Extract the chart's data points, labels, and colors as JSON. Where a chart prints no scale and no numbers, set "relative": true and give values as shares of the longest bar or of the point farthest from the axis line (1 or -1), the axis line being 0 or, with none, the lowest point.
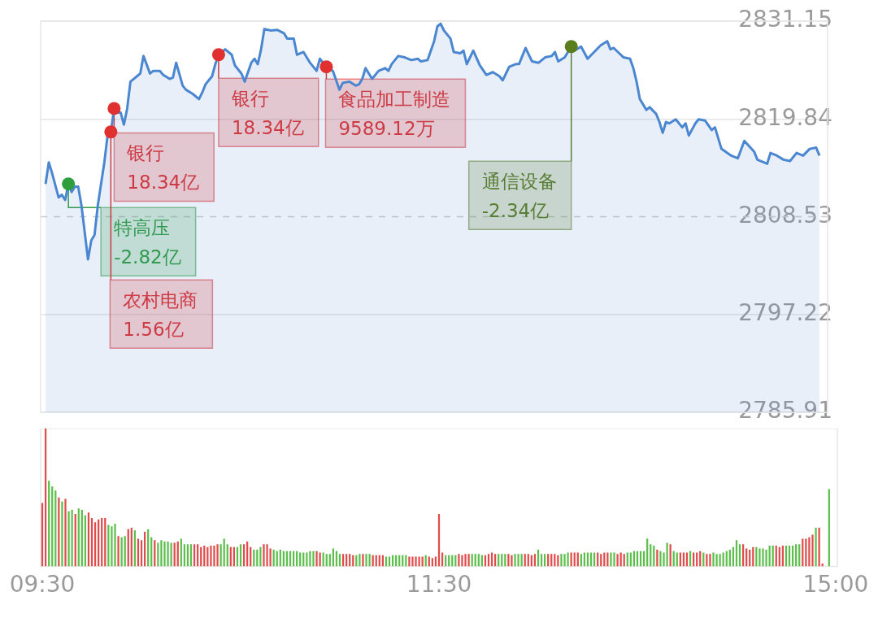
{
  "chart_data": [
    {
      "type": "area",
      "ylim": [
        2785.91,
        2831.15
      ],
      "yticks": [
        2785.91,
        2797.22,
        2808.53,
        2819.84,
        2831.15
      ],
      "grid": "y",
      "tick_labels": "y",
      "ref_lines": [
        {
          "axis": "y",
          "value": 2808.53,
          "line_style": "dashed",
          "color": "#cccccc"
        }
      ],
      "categories": [
        null,
        null,
        null,
        null,
        null,
        null,
        null,
        null,
        null,
        null,
        null,
        null,
        null,
        null,
        null,
        null,
        null,
        null,
        null,
        null,
        null,
        null,
        null,
        null,
        null,
        null,
        null,
        null,
        null,
        null,
        null,
        null,
        null,
        null,
        null,
        null,
        null,
        null,
        null,
        null,
        null,
        null,
        null,
        null,
        null,
        null,
        null,
        null,
        null,
        null,
        null,
        null,
        null,
        null,
        null,
        null,
        null,
        null,
        null,
        null,
        null,
        null,
        null,
        null,
        null,
        null,
        null,
        null,
        null,
        null,
        null,
        null,
        null,
        null,
        null,
        null,
        null,
        null,
        null,
        null,
        null,
        null,
        null,
        null,
        null,
        null,
        null,
        null,
        null,
        null,
        null,
        null,
        null,
        null,
        null,
        null,
        null,
        null,
        null,
        null,
        null,
        null,
        null,
        null,
        null,
        null,
        null,
        null,
        null,
        null,
        null,
        null,
        null,
        null,
        null,
        null,
        null,
        null,
        null,
        null,
        null,
        null,
        null,
        null,
        null,
        null,
        null,
        null,
        null,
        null,
        null,
        null,
        null,
        null,
        null,
        null,
        null,
        null,
        null,
        null,
        null,
        null,
        null,
        null,
        null,
        null,
        null,
        null,
        null,
        null,
        null,
        null,
        null,
        null,
        null,
        null,
        null,
        null,
        null,
        null,
        null,
        null,
        null,
        null,
        null,
        null,
        null,
        null,
        null,
        null,
        null,
        null,
        null,
        null,
        null,
        null,
        null,
        null,
        null,
        null,
        null,
        null,
        null,
        null,
        null,
        null,
        null,
        null,
        null,
        null,
        null,
        null,
        null,
        null,
        null,
        null,
        null,
        null,
        null,
        null,
        null,
        null,
        null,
        null,
        null,
        null,
        null,
        null,
        null,
        null,
        null,
        null,
        null,
        null,
        null,
        null,
        null,
        null,
        null,
        null,
        null,
        null,
        null,
        null,
        null,
        null,
        null,
        null,
        null,
        null,
        null,
        null,
        null,
        null,
        null,
        null,
        null,
        null,
        null,
        null,
        null
      ],
      "series": [
        {
          "type": "scatter",
          "marker": "circle",
          "values": [
            null,
            null,
            null,
            null,
            null,
            null,
            null,
            null,
            2812.33,
            null,
            null,
            null,
            null,
            null,
            null,
            null,
            null,
            null,
            null,
            null,
            null,
            2818.34,
            2821.05,
            null,
            null,
            null,
            null,
            null,
            null,
            null,
            null,
            null,
            null,
            null,
            null,
            null,
            null,
            null,
            null,
            null,
            null,
            null,
            null,
            null,
            null,
            null,
            null,
            null,
            null,
            null,
            null,
            null,
            null,
            null,
            2827.27,
            null,
            null,
            null,
            null,
            null,
            null,
            null,
            null,
            null,
            null,
            null,
            null,
            null,
            null,
            null,
            null,
            null,
            null,
            null,
            null,
            null,
            null,
            null,
            null,
            null,
            null,
            null,
            null,
            null,
            null,
            null,
            null,
            2825.87,
            null,
            null,
            null,
            null,
            null,
            null,
            null,
            null,
            null,
            null,
            null,
            null,
            null,
            null,
            null,
            null,
            null,
            null,
            null,
            null,
            null,
            null,
            null,
            null,
            null,
            null,
            null,
            null,
            null,
            null,
            null,
            null,
            null,
            null,
            null,
            null,
            null,
            null,
            null,
            null,
            null,
            null,
            null,
            null,
            null,
            null,
            null,
            null,
            null,
            null,
            null,
            null,
            null,
            null,
            null,
            null,
            null,
            null,
            null,
            null,
            null,
            null,
            null,
            null,
            null,
            null,
            null,
            null,
            null,
            null,
            null,
            null,
            null,
            null,
            2828.21,
            null,
            null,
            null,
            null,
            null,
            null,
            null,
            null,
            null,
            null,
            null,
            null,
            null,
            null,
            null,
            null,
            null,
            null,
            null,
            null,
            null,
            null,
            null,
            null,
            null,
            null,
            null,
            null,
            null,
            null,
            null,
            null,
            null,
            null,
            null,
            null,
            null,
            null,
            null,
            null,
            null,
            null,
            null,
            null,
            null,
            null,
            null,
            null,
            null,
            null,
            null,
            null,
            null,
            null,
            null,
            null,
            null,
            null,
            null,
            null,
            null,
            null,
            null,
            null,
            null,
            null,
            null,
            null,
            null,
            null,
            null,
            null,
            null,
            null,
            null,
            null,
            null,
            null
          ],
          "colors": [
            null,
            null,
            null,
            null,
            null,
            null,
            null,
            null,
            "#2e9e3e",
            null,
            null,
            null,
            null,
            null,
            null,
            null,
            null,
            null,
            null,
            null,
            null,
            "#e03030",
            "#e03030",
            null,
            null,
            null,
            null,
            null,
            null,
            null,
            null,
            null,
            null,
            null,
            null,
            null,
            null,
            null,
            null,
            null,
            null,
            null,
            null,
            null,
            null,
            null,
            null,
            null,
            null,
            null,
            null,
            null,
            null,
            null,
            "#e03030",
            null,
            null,
            null,
            null,
            null,
            null,
            null,
            null,
            null,
            null,
            null,
            null,
            null,
            null,
            null,
            null,
            null,
            null,
            null,
            null,
            null,
            null,
            null,
            null,
            null,
            null,
            null,
            null,
            null,
            null,
            null,
            null,
            "#e03030",
            null,
            null,
            null,
            null,
            null,
            null,
            null,
            null,
            null,
            null,
            null,
            null,
            null,
            null,
            null,
            null,
            null,
            null,
            null,
            null,
            null,
            null,
            null,
            null,
            null,
            null,
            null,
            null,
            null,
            null,
            null,
            null,
            null,
            null,
            null,
            null,
            null,
            null,
            null,
            null,
            null,
            null,
            null,
            null,
            null,
            null,
            null,
            null,
            null,
            null,
            null,
            null,
            null,
            null,
            null,
            null,
            null,
            null,
            null,
            null,
            null,
            null,
            null,
            null,
            null,
            null,
            null,
            null,
            null,
            null,
            null,
            null,
            null,
            null,
            "#5a7d1e",
            null,
            null,
            null,
            null,
            null,
            null,
            null,
            null,
            null,
            null,
            null,
            null,
            null,
            null,
            null,
            null,
            null,
            null,
            null,
            null,
            null,
            null,
            null,
            null,
            null,
            null,
            null,
            null,
            null,
            null,
            null,
            null,
            null,
            null,
            null,
            null,
            null,
            null,
            null,
            null,
            null,
            null,
            null,
            null,
            null,
            null,
            null,
            null,
            null,
            null,
            null,
            null,
            null,
            null,
            null,
            null,
            null,
            null,
            null,
            null,
            null,
            null,
            null,
            null,
            null,
            null,
            null,
            null,
            null,
            null,
            null,
            null,
            null,
            null,
            null,
            null,
            null,
            null
          ]
        },
        {
          "type": "area",
          "color": "#4a87d0",
          "values": [
            null,
            2812.33,
            2814.82,
            2813.58,
            null,
            2810.77,
            2811.08,
            2810.46,
            2812.33,
            2811.4,
            2812.02,
            2812.02,
            2809.84,
            null,
            2803.61,
            2805.79,
            2806.42,
            2809.84,
            null,
            2814.82,
            2817.93,
            2818.34,
            2821.05,
            2820.58,
            2820.58,
            2819.18,
            2821.05,
            2824.16,
            2824.47,
            2824.78,
            2825.09,
            2827.12,
            null,
            2825.09,
            2825.4,
            null,
            2825.4,
            2824.94,
            null,
            2824.47,
            2824.63,
            2826.34,
            null,
            2823.69,
            2823.22,
            null,
            2822.76,
            null,
            2822.14,
            2822.91,
            2823.85,
            null,
            2824.78,
            2826.18,
            2827.27,
            null,
            2827.89,
            null,
            2827.27,
            2826.03,
            null,
            2825.09,
            2824.16,
            null,
            2826.34,
            2826.8,
            2826.18,
            2827.89,
            2830.23,
            null,
            2830.07,
            null,
            2830.13,
            null,
            2829.76,
            2829.14,
            null,
            2829.14,
            2827.27,
            null,
            2827.58,
            null,
            2826.34,
            null,
            2825.4,
            2826.8,
            null,
            2825.87,
            null,
            2825.4,
            null,
            2823.22,
            2824.0,
            null,
            2824.16,
            null,
            2823.69,
            2823.85,
            2824.47,
            2825.72,
            null,
            2824.47,
            null,
            2825.4,
            null,
            2825.72,
            2825.4,
            2826.18,
            null,
            2827.12,
            null,
            2826.96,
            null,
            2826.65,
            null,
            2826.8,
            2826.49,
            null,
            2826.65,
            null,
            2828.83,
            2830.54,
            2830.85,
            2830.07,
            null,
            2829.14,
            2827.58,
            null,
            2827.43,
            2827.74,
            2826.18,
            null,
            2827.74,
            null,
            2826.03,
            null,
            2824.94,
            null,
            2825.25,
            null,
            2824.78,
            2824.31,
            null,
            2825.87,
            null,
            2826.18,
            2826.18,
            null,
            2828.05,
            null,
            2826.49,
            null,
            2826.34,
            null,
            2826.96,
            null,
            2827.12,
            2827.58,
            2826.49,
            null,
            2826.96,
            null,
            2828.21,
            2827.74,
            null,
            2828.21,
            null,
            2826.8,
            null,
            2827.58,
            null,
            2828.36,
            null,
            2828.83,
            2827.89,
            2828.05,
            null,
            null,
            2826.96,
            null,
            2826.8,
            2825.72,
            2824.16,
            2822.14,
            null,
            2820.89,
            2821.2,
            null,
            2820.42,
            2819.49,
            2818.24,
            2819.49,
            2819.33,
            null,
            2819.8,
            null,
            2818.87,
            2819.33,
            2817.93,
            null,
            2819.33,
            2819.8,
            null,
            2819.65,
            null,
            2818.56,
            2818.87,
            null,
            2816.38,
            null,
            null,
            2815.6,
            null,
            2815.29,
            null,
            2817.31,
            null,
            null,
            2816.07,
            2815.13,
            null,
            null,
            2814.66,
            2815.91,
            null,
            2815.6,
            null,
            2815.13,
            null,
            2814.98,
            null,
            2815.91,
            null,
            2815.6,
            null,
            2816.38,
            null,
            2816.53,
            2815.6,
            null,
            null
          ]
        }
      ],
      "annotations": [
        "特高压\n-2.82亿",
        "农村电商\n1.56亿",
        "银行\n18.34亿",
        "银行\n18.34亿",
        "食品加工制造\n9589.12万",
        "通信设备\n-2.34亿"
      ]
    },
    {
      "type": "bar",
      "relative": true,
      "tick_labels": "x",
      "categories": [
        "09:30",
        null,
        null,
        null,
        null,
        null,
        null,
        null,
        null,
        null,
        null,
        null,
        null,
        null,
        null,
        null,
        null,
        null,
        null,
        null,
        null,
        null,
        null,
        null,
        null,
        null,
        null,
        null,
        null,
        null,
        null,
        null,
        null,
        null,
        null,
        null,
        null,
        null,
        null,
        null,
        null,
        null,
        null,
        null,
        null,
        null,
        null,
        null,
        null,
        null,
        null,
        null,
        null,
        null,
        null,
        null,
        null,
        null,
        null,
        null,
        null,
        null,
        null,
        null,
        null,
        null,
        null,
        null,
        null,
        null,
        null,
        null,
        null,
        null,
        null,
        null,
        null,
        null,
        null,
        null,
        null,
        null,
        null,
        null,
        null,
        null,
        null,
        null,
        null,
        null,
        null,
        null,
        null,
        null,
        null,
        null,
        null,
        null,
        null,
        null,
        null,
        null,
        null,
        null,
        null,
        null,
        null,
        null,
        null,
        null,
        null,
        null,
        null,
        null,
        null,
        null,
        null,
        null,
        null,
        null,
        "11:30",
        null,
        null,
        null,
        null,
        null,
        null,
        null,
        null,
        null,
        null,
        null,
        null,
        null,
        null,
        null,
        null,
        null,
        null,
        null,
        null,
        null,
        null,
        null,
        null,
        null,
        null,
        null,
        null,
        null,
        null,
        null,
        null,
        null,
        null,
        null,
        null,
        null,
        null,
        null,
        null,
        null,
        null,
        null,
        null,
        null,
        null,
        null,
        null,
        null,
        null,
        null,
        null,
        null,
        null,
        null,
        null,
        null,
        null,
        null,
        null,
        null,
        null,
        null,
        null,
        null,
        null,
        null,
        null,
        null,
        null,
        null,
        null,
        null,
        null,
        null,
        null,
        null,
        null,
        null,
        null,
        null,
        null,
        null,
        null,
        null,
        null,
        null,
        null,
        null,
        null,
        null,
        null,
        null,
        null,
        null,
        null,
        null,
        null,
        null,
        null,
        null,
        null,
        null,
        null,
        null,
        null,
        null,
        null,
        null,
        null,
        null,
        null,
        null,
        null,
        null,
        null,
        null,
        null,
        null,
        "15:00"
      ],
      "values": [
        0.46,
        1,
        0.62,
        0.58,
        0.55,
        0.5,
        0.47,
        0.49,
        0.4,
        0.41,
        0.38,
        0.42,
        0.41,
        0.37,
        0.39,
        0.35,
        0.32,
        0.34,
        0.35,
        0.35,
        0.3,
        0.29,
        0.31,
        0.22,
        0.21,
        0.22,
        0.27,
        0.28,
        0.26,
        0.2,
        0.19,
        0.25,
        0.27,
        0.21,
        0.19,
        0.17,
        0.19,
        0.18,
        0.18,
        0.17,
        0.17,
        0.18,
        0.2,
        0.16,
        0.16,
        0.16,
        0.16,
        0.16,
        0.14,
        0.15,
        0.14,
        0.15,
        0.15,
        0.16,
        0.16,
        0.2,
        0.16,
        0.14,
        0.14,
        0.14,
        0.16,
        0.16,
        0.18,
        0.14,
        0.12,
        0.12,
        0.14,
        0.16,
        0.16,
        0.13,
        0.12,
        0.11,
        0.12,
        0.11,
        0.11,
        0.11,
        0.11,
        0.11,
        0.1,
        0.1,
        0.1,
        0.11,
        0.11,
        0.11,
        0.1,
        0.1,
        0.09,
        0.09,
        0.13,
        0.11,
        0.09,
        0.09,
        0.09,
        0.09,
        0.08,
        0.08,
        0.09,
        0.09,
        0.09,
        0.09,
        0.08,
        0.08,
        0.08,
        0.08,
        0.07,
        0.07,
        0.08,
        0.08,
        0.08,
        0.08,
        0.08,
        0.07,
        0.07,
        0.07,
        0.07,
        0.07,
        0.08,
        0.07,
        0.06,
        0.07,
        0.38,
        0.1,
        0.08,
        0.08,
        0.08,
        0.08,
        0.09,
        0.08,
        0.09,
        0.09,
        0.09,
        0.09,
        0.09,
        0.08,
        0.08,
        0.09,
        0.1,
        0.09,
        0.09,
        0.09,
        0.09,
        0.09,
        0.08,
        0.09,
        0.09,
        0.09,
        0.09,
        0.09,
        0.08,
        0.09,
        0.12,
        0.09,
        0.09,
        0.09,
        0.09,
        0.09,
        0.08,
        0.09,
        0.09,
        0.1,
        0.1,
        0.1,
        0.1,
        0.09,
        0.1,
        0.1,
        0.1,
        0.1,
        0.1,
        0.09,
        0.1,
        0.1,
        0.1,
        0.1,
        0.09,
        0.1,
        0.09,
        0.1,
        0.1,
        0.11,
        0.11,
        0.11,
        0.11,
        0.2,
        0.16,
        0.15,
        0.12,
        0.11,
        0.1,
        0.17,
        0.16,
        0.11,
        0.1,
        0.1,
        0.1,
        0.1,
        0.11,
        0.1,
        0.1,
        0.11,
        0.1,
        0.09,
        0.09,
        0.1,
        0.09,
        0.09,
        0.1,
        0.11,
        0.12,
        0.14,
        0.19,
        0.16,
        0.16,
        0.13,
        0.12,
        0.14,
        0.14,
        0.13,
        0.13,
        0.12,
        0.15,
        0.15,
        0.15,
        0.14,
        0.15,
        0.15,
        0.15,
        0.15,
        0.16,
        0.16,
        0.2,
        0.2,
        0.21,
        0.23,
        0.28,
        0.28,
        0.02,
        null,
        0.56,
        null,
        null
      ],
      "colors": [
        "#e04b4b",
        "#e04b4b",
        "#5cbf4c",
        "#5cbf4c",
        "#5cbf4c",
        "#e04b4b",
        "#5cbf4c",
        "#e04b4b",
        "#5cbf4c",
        "#5cbf4c",
        "#e04b4b",
        "#5cbf4c",
        "#5cbf4c",
        "#5cbf4c",
        "#e04b4b",
        "#e04b4b",
        "#e04b4b",
        "#e04b4b",
        "#e04b4b",
        "#e04b4b",
        "#5cbf4c",
        "#5cbf4c",
        "#5cbf4c",
        "#e04b4b",
        "#5cbf4c",
        "#5cbf4c",
        "#e04b4b",
        "#e04b4b",
        "#5cbf4c",
        "#e04b4b",
        "#e04b4b",
        "#e04b4b",
        "#5cbf4c",
        "#5cbf4c",
        "#e04b4b",
        "#5cbf4c",
        "#5cbf4c",
        "#5cbf4c",
        "#5cbf4c",
        "#5cbf4c",
        "#e04b4b",
        "#e04b4b",
        "#5cbf4c",
        "#5cbf4c",
        "#5cbf4c",
        "#5cbf4c",
        "#e04b4b",
        "#e04b4b",
        "#e04b4b",
        "#e04b4b",
        "#e04b4b",
        "#e04b4b",
        "#e04b4b",
        "#e04b4b",
        "#5cbf4c",
        "#5cbf4c",
        "#5cbf4c",
        "#e04b4b",
        "#e04b4b",
        "#5cbf4c",
        "#5cbf4c",
        "#e04b4b",
        "#e04b4b",
        "#e04b4b",
        "#5cbf4c",
        "#5cbf4c",
        "#5cbf4c",
        "#e04b4b",
        "#e04b4b",
        "#e04b4b",
        "#5cbf4c",
        "#5cbf4c",
        "#5cbf4c",
        "#5cbf4c",
        "#5cbf4c",
        "#5cbf4c",
        "#5cbf4c",
        "#5cbf4c",
        "#5cbf4c",
        "#5cbf4c",
        "#5cbf4c",
        "#5cbf4c",
        "#5cbf4c",
        "#e04b4b",
        "#e04b4b",
        "#5cbf4c",
        "#5cbf4c",
        "#5cbf4c",
        "#5cbf4c",
        "#5cbf4c",
        "#5cbf4c",
        "#e04b4b",
        "#e04b4b",
        "#e04b4b",
        "#e04b4b",
        "#5cbf4c",
        "#5cbf4c",
        "#e04b4b",
        "#5cbf4c",
        "#5cbf4c",
        "#e04b4b",
        "#e04b4b",
        "#e04b4b",
        "#e04b4b",
        "#5cbf4c",
        "#5cbf4c",
        "#5cbf4c",
        "#5cbf4c",
        "#5cbf4c",
        "#5cbf4c",
        "#5cbf4c",
        "#e04b4b",
        "#e04b4b",
        "#e04b4b",
        "#e04b4b",
        "#e04b4b",
        "#5cbf4c",
        "#e04b4b",
        "#e04b4b",
        "#e04b4b",
        "#e04b4b",
        "#e04b4b",
        "#5cbf4c",
        "#5cbf4c",
        "#5cbf4c",
        "#5cbf4c",
        "#e04b4b",
        "#e04b4b",
        "#e04b4b",
        "#e04b4b",
        "#5cbf4c",
        "#5cbf4c",
        "#5cbf4c",
        "#5cbf4c",
        "#e04b4b",
        "#e04b4b",
        "#e04b4b",
        "#e04b4b",
        "#5cbf4c",
        "#5cbf4c",
        "#5cbf4c",
        "#e04b4b",
        "#e04b4b",
        "#5cbf4c",
        "#5cbf4c",
        "#5cbf4c",
        "#e04b4b",
        "#e04b4b",
        "#e04b4b",
        "#e04b4b",
        "#5cbf4c",
        "#5cbf4c",
        "#5cbf4c",
        "#e04b4b",
        "#e04b4b",
        "#e04b4b",
        "#e04b4b",
        "#5cbf4c",
        "#5cbf4c",
        "#5cbf4c",
        "#e04b4b",
        "#e04b4b",
        "#e04b4b",
        "#5cbf4c",
        "#5cbf4c",
        "#5cbf4c",
        "#5cbf4c",
        "#5cbf4c",
        "#e04b4b",
        "#e04b4b",
        "#e04b4b",
        "#e04b4b",
        "#5cbf4c",
        "#5cbf4c",
        "#e04b4b",
        "#e04b4b",
        "#e04b4b",
        "#5cbf4c",
        "#5cbf4c",
        "#5cbf4c",
        "#5cbf4c",
        "#5cbf4c",
        "#5cbf4c",
        "#5cbf4c",
        "#5cbf4c",
        "#5cbf4c",
        "#e04b4b",
        "#5cbf4c",
        "#5cbf4c",
        "#5cbf4c",
        "#e04b4b",
        "#5cbf4c",
        "#5cbf4c",
        "#e04b4b",
        "#e04b4b",
        "#e04b4b",
        "#5cbf4c",
        "#e04b4b",
        "#e04b4b",
        "#e04b4b",
        "#5cbf4c",
        "#e04b4b",
        "#e04b4b",
        "#5cbf4c",
        "#5cbf4c",
        "#5cbf4c",
        "#5cbf4c",
        "#5cbf4c",
        "#5cbf4c",
        "#5cbf4c",
        "#5cbf4c",
        "#5cbf4c",
        "#e04b4b",
        "#e04b4b",
        "#e04b4b",
        "#e04b4b",
        "#5cbf4c",
        "#5cbf4c",
        "#5cbf4c",
        "#5cbf4c",
        "#5cbf4c",
        "#5cbf4c",
        "#e04b4b",
        "#e04b4b",
        "#e04b4b",
        "#5cbf4c",
        "#5cbf4c",
        "#5cbf4c",
        "#5cbf4c",
        "#5cbf4c",
        "#e04b4b",
        "#e04b4b",
        "#e04b4b",
        "#e04b4b",
        "#5cbf4c",
        "#e04b4b",
        "#e04b4b",
        "#e04b4b",
        "#5cbf4c",
        "#5cbf4c",
        "#5cbf4c"
      ]
    }
  ]
}
